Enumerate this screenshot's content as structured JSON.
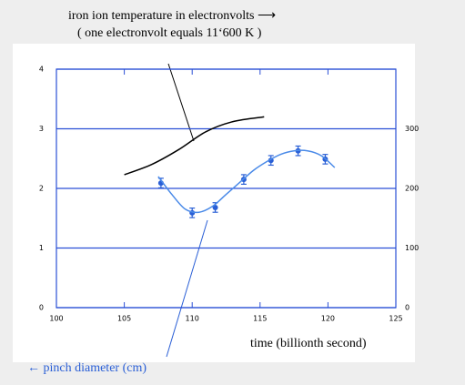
{
  "chart_data": {
    "type": "line",
    "annotations": [
      "iron ion temperature in electronvolts ⟶",
      "( one electronvolt equals 11‘600 K )",
      "← pinch diameter (cm)"
    ],
    "x_label": "time (billionth second)",
    "xlim": [
      100,
      125
    ],
    "xticks": [
      100,
      105,
      110,
      115,
      120,
      125
    ],
    "ylim": [
      0,
      4
    ],
    "yticks": [
      0,
      1,
      2,
      3,
      4
    ],
    "y2lim": [
      0,
      400
    ],
    "y2ticks": [
      0,
      100,
      200,
      300
    ],
    "grid": true,
    "grid_color": "#2a4fd6",
    "series": [
      {
        "color": "#2a5fd6",
        "marker": true,
        "x": [
          107.7,
          110,
          111.7,
          113.8,
          115.8,
          117.8,
          119.8
        ],
        "values": [
          2.09,
          1.59,
          1.68,
          2.15,
          2.47,
          2.63,
          2.49
        ],
        "errors": [
          0.08,
          0.08,
          0.08,
          0.08,
          0.08,
          0.08,
          0.08
        ]
      },
      {
        "color": "#4a8ae8",
        "marker": false,
        "x": [
          107.5,
          108.5,
          109.5,
          110.5,
          111.5,
          112.5,
          113.5,
          114.5,
          115.5,
          116.5,
          117.5,
          118.5,
          119.5,
          120.5
        ],
        "values": [
          2.2,
          1.9,
          1.65,
          1.6,
          1.7,
          1.9,
          2.1,
          2.3,
          2.45,
          2.57,
          2.63,
          2.63,
          2.55,
          2.35
        ]
      },
      {
        "color": "#000000",
        "marker": false,
        "axis": "y2",
        "x": [
          105,
          107,
          109,
          111,
          113,
          115.3
        ],
        "values": [
          223,
          240,
          265,
          295,
          312,
          320
        ]
      }
    ]
  }
}
